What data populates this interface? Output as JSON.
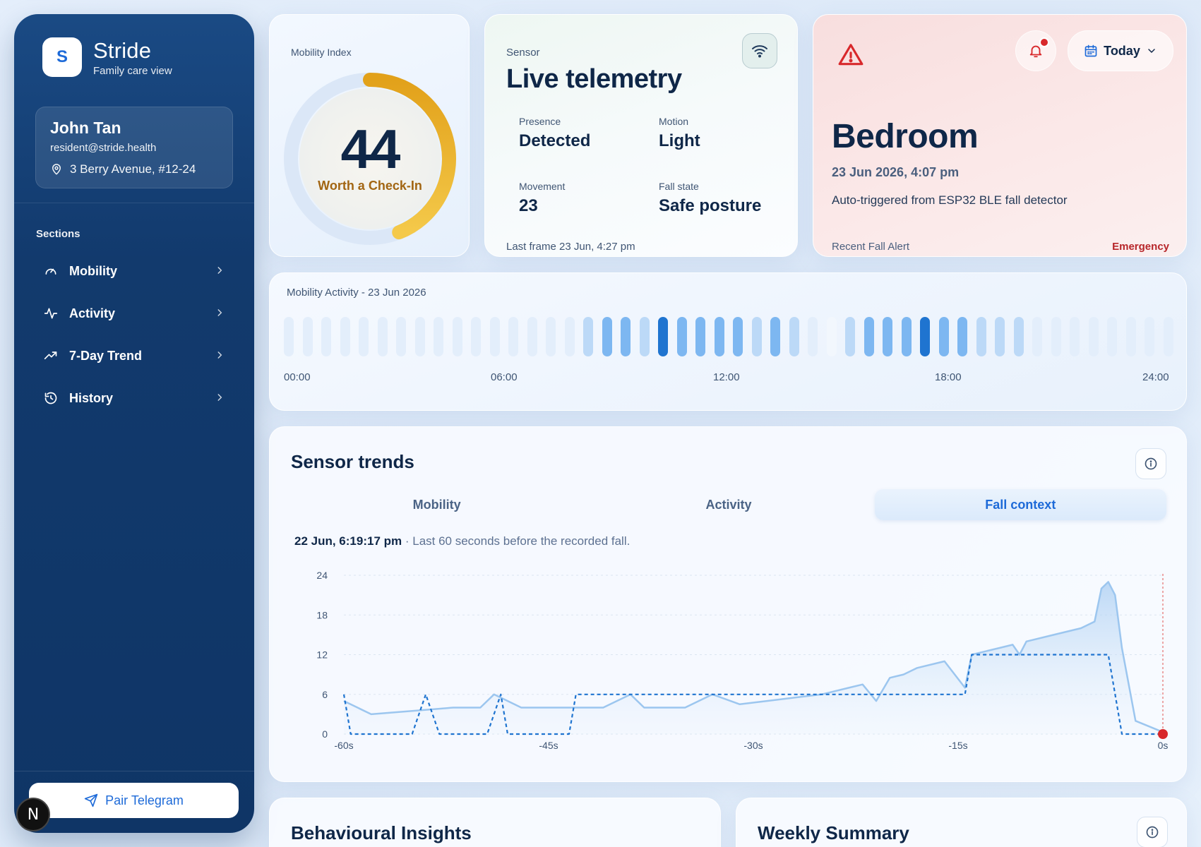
{
  "sidebar": {
    "brand_initial": "S",
    "brand_name": "Stride",
    "brand_sub": "Family care view",
    "user": {
      "name": "John Tan",
      "email": "resident@stride.health",
      "address": "3 Berry Avenue, #12-24"
    },
    "sections_label": "Sections",
    "items": [
      {
        "label": "Mobility",
        "icon": "gauge-icon"
      },
      {
        "label": "Activity",
        "icon": "pulse-icon"
      },
      {
        "label": "7-Day Trend",
        "icon": "trend-up-icon"
      },
      {
        "label": "History",
        "icon": "history-icon"
      }
    ],
    "pair_label": "Pair Telegram",
    "badge_letter": "N"
  },
  "mobility": {
    "title": "Mobility Index",
    "score": "44",
    "score_max": 100,
    "status": "Worth a Check-In",
    "accent": "#e5a319"
  },
  "telemetry": {
    "kicker": "Sensor",
    "title": "Live telemetry",
    "stats": [
      {
        "key": "Presence",
        "value": "Detected"
      },
      {
        "key": "Motion",
        "value": "Light"
      },
      {
        "key": "Movement",
        "value": "23"
      },
      {
        "key": "Fall state",
        "value": "Safe posture"
      }
    ],
    "footer": "Last frame 23 Jun, 4:27 pm"
  },
  "alert": {
    "room": "Bedroom",
    "time": "23 Jun 2026, 4:07 pm",
    "description": "Auto-triggered from ESP32 BLE fall detector",
    "footer_left": "Recent Fall Alert",
    "footer_right": "Emergency",
    "date_filter": "Today",
    "alert_color": "#d8282b"
  },
  "activity": {
    "title": "Mobility Activity - 23 Jun 2026",
    "ticks": [
      "00:00",
      "06:00",
      "12:00",
      "18:00",
      "24:00"
    ],
    "levels": [
      1,
      1,
      1,
      1,
      1,
      1,
      1,
      1,
      1,
      1,
      1,
      1,
      1,
      1,
      1,
      1,
      2,
      3,
      3,
      2,
      4,
      3,
      3,
      3,
      3,
      2,
      3,
      2,
      1,
      0,
      2,
      3,
      3,
      3,
      4,
      3,
      3,
      2,
      2,
      2,
      1,
      1,
      1,
      1,
      1,
      1,
      1,
      1
    ],
    "colors": [
      "#f2f7fd",
      "#e3eefb",
      "#bcd9f7",
      "#7db7f1",
      "#1f74d0"
    ]
  },
  "trends": {
    "title": "Sensor trends",
    "tabs": [
      "Mobility",
      "Activity",
      "Fall context"
    ],
    "active_tab": 2,
    "sub_time": "22 Jun, 6:19:17 pm",
    "sub_text": "· Last 60 seconds before the recorded fall."
  },
  "chart_data": {
    "type": "line",
    "x_ticks": [
      "-60s",
      "-45s",
      "-30s",
      "-15s",
      "0s"
    ],
    "y_ticks": [
      "0",
      "6",
      "12",
      "18",
      "24"
    ],
    "xlim": [
      -60,
      0
    ],
    "ylim": [
      0,
      24
    ],
    "series": [
      {
        "style": "solid-area",
        "color": "#9cc6ef",
        "x": [
          -60,
          -58,
          -55,
          -52,
          -50,
          -49,
          -47,
          -44,
          -41,
          -39,
          -38,
          -37,
          -35,
          -33,
          -31,
          -29,
          -27,
          -25,
          -23,
          -22,
          -21,
          -20,
          -19,
          -18,
          -16,
          -14.5,
          -14,
          -12,
          -11,
          -10.5,
          -10,
          -8,
          -6,
          -5,
          -4.5,
          -4,
          -3.5,
          -3,
          -2,
          0
        ],
        "y": [
          5,
          3,
          3.5,
          4,
          4,
          6,
          4,
          4,
          4,
          6,
          4,
          4,
          4,
          6,
          4.5,
          5,
          5.5,
          6,
          7,
          7.5,
          5,
          8.5,
          9,
          10,
          11,
          7,
          12,
          13,
          13.5,
          12,
          14,
          15,
          16,
          17,
          22,
          23,
          21,
          13,
          2,
          0.3
        ]
      },
      {
        "style": "dashed-step",
        "color": "#1f74d0",
        "x": [
          -60,
          -59.5,
          -55,
          -54,
          -53,
          -49.5,
          -48.5,
          -48,
          -43.5,
          -43,
          -42,
          -40,
          -38,
          -37,
          -31,
          -30,
          -28,
          -22,
          -21,
          -20,
          -19,
          -16,
          -14.5,
          -14,
          -4,
          -3,
          -2,
          -1,
          0
        ],
        "y": [
          6,
          0,
          0,
          6,
          0,
          0,
          6,
          0,
          0,
          6,
          6,
          6,
          6,
          6,
          6,
          6,
          6,
          6,
          6,
          6,
          6,
          6,
          6,
          12,
          12,
          0,
          0,
          0,
          0
        ]
      }
    ],
    "event_marker": {
      "x": 0,
      "y": 0,
      "color": "#d8282b"
    }
  },
  "insights": {
    "title": "Behavioural Insights"
  },
  "weekly": {
    "title": "Weekly Summary"
  }
}
